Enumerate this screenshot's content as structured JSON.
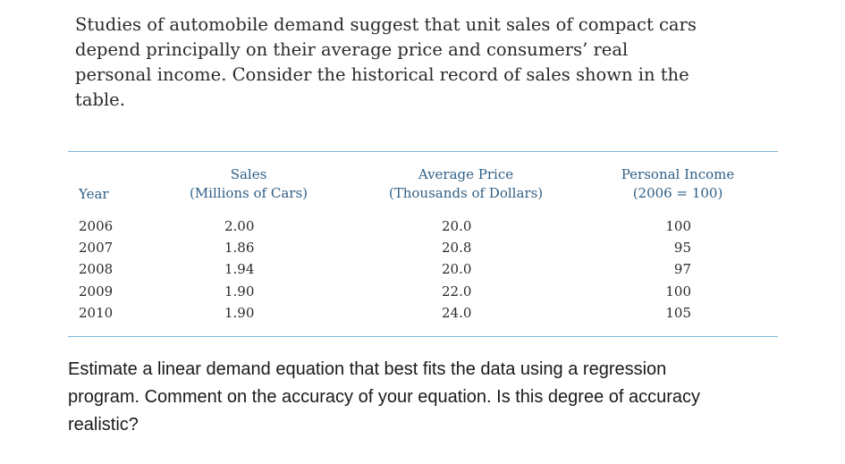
{
  "intro": {
    "lines": [
      "Studies of automobile demand suggest that unit sales of compact cars",
      "depend principally on their average price and consumers’ real",
      "personal income. Consider the historical record of sales shown in the",
      "table."
    ]
  },
  "table": {
    "headers": {
      "year": "Year",
      "sales": [
        "Sales",
        "(Millions of Cars)"
      ],
      "price": [
        "Average Price",
        "(Thousands of Dollars)"
      ],
      "income": [
        "Personal Income",
        "(2006 = 100)"
      ]
    },
    "rows": [
      {
        "year": "2006",
        "sales": "2.00",
        "price": "20.0",
        "income": "100"
      },
      {
        "year": "2007",
        "sales": "1.86",
        "price": "20.8",
        "income": "95"
      },
      {
        "year": "2008",
        "sales": "1.94",
        "price": "20.0",
        "income": "97"
      },
      {
        "year": "2009",
        "sales": "1.90",
        "price": "22.0",
        "income": "100"
      },
      {
        "year": "2010",
        "sales": "1.90",
        "price": "24.0",
        "income": "105"
      }
    ],
    "header_color": "#2f5f86",
    "rule_color": "#7fb6d6"
  },
  "question": {
    "lines": [
      "Estimate a linear demand equation that best fits the data using a regression",
      "program. Comment on the accuracy of your equation. Is this degree of accuracy",
      "realistic?"
    ]
  }
}
